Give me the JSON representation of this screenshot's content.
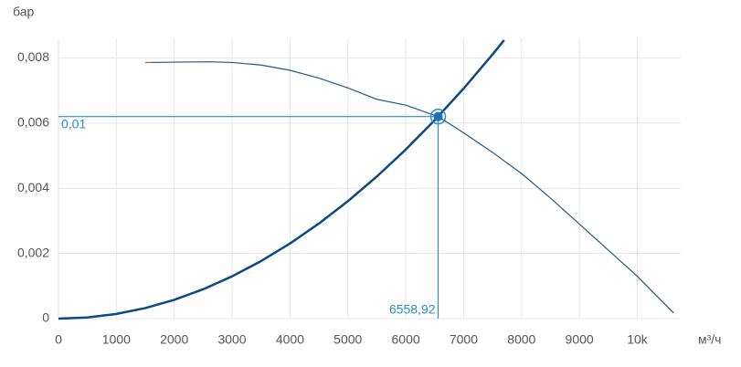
{
  "chart_data": {
    "type": "line",
    "y_label": "бар",
    "x_label": "м³/ч",
    "xlim": [
      0,
      10750
    ],
    "ylim": [
      0,
      0.0086
    ],
    "xticks": [
      0,
      1000,
      2000,
      3000,
      4000,
      5000,
      6000,
      7000,
      8000,
      9000,
      {
        "value": 10000,
        "label": "10k"
      }
    ],
    "yticks": [
      0,
      {
        "value": 0.002,
        "label": "0,002"
      },
      {
        "value": 0.004,
        "label": "0,004"
      },
      {
        "value": 0.006,
        "label": "0,006"
      },
      {
        "value": 0.008,
        "label": "0,008"
      }
    ],
    "grid": true,
    "series": [
      {
        "color": "#1f5a8a",
        "width": 1.2,
        "x": [
          1600,
          2000,
          2600,
          3000,
          3500,
          4000,
          4500,
          5000,
          5500,
          6000,
          6558.92,
          7000,
          7500,
          8000,
          8500,
          9000,
          9500,
          10000,
          10500,
          10630
        ],
        "values": [
          0.00786,
          0.00787,
          0.00788,
          0.00786,
          0.00778,
          0.00762,
          0.00738,
          0.00708,
          0.00673,
          0.00655,
          0.0062,
          0.0057,
          0.0051,
          0.00445,
          0.0037,
          0.0029,
          0.0021,
          0.0013,
          0.0004,
          0.00017
        ]
      },
      {
        "color": "#e74c3c",
        "width": 1.2,
        "x": [
          1500,
          1600
        ],
        "values": [
          0.00786,
          0.00786
        ]
      },
      {
        "color": "#0b4a85",
        "width": 2.5,
        "x": [
          0,
          500,
          1000,
          1500,
          2000,
          2500,
          3000,
          3500,
          4000,
          4500,
          5000,
          5500,
          6000,
          6500,
          7000,
          7500,
          7700
        ],
        "values": [
          0,
          3.6e-05,
          0.000144,
          0.000324,
          0.000576,
          0.000901,
          0.001297,
          0.001765,
          0.002306,
          0.002918,
          0.003603,
          0.00436,
          0.005188,
          0.006089,
          0.007062,
          0.008107,
          0.008545
        ]
      }
    ],
    "operating_point": {
      "x": 6558.92,
      "y": 0.0062,
      "x_label": "6558,92",
      "y_label": "0,01",
      "color": "#2a8fd0"
    }
  }
}
